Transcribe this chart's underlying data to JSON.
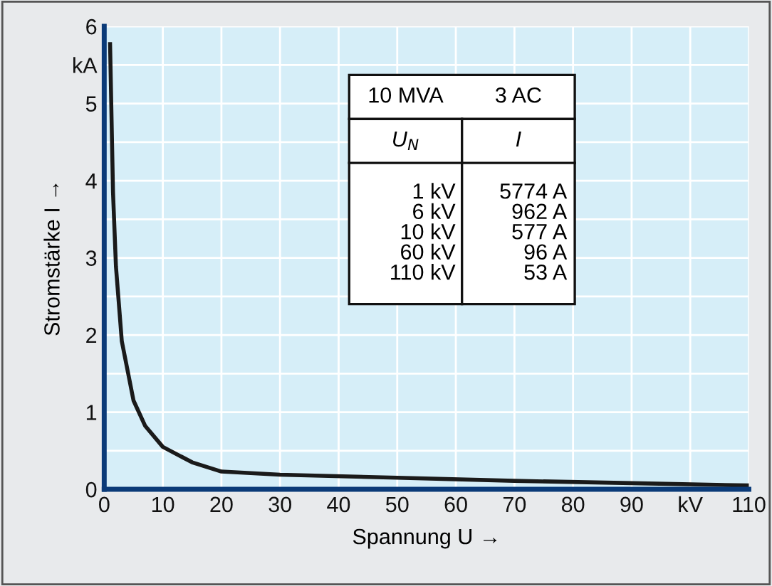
{
  "chart_data": {
    "type": "line",
    "xlabel": "Spannung U →",
    "ylabel": "Stromstärke I →",
    "x": [
      1,
      1.5,
      2,
      3,
      5,
      7,
      10,
      15,
      20,
      30,
      50,
      70,
      90,
      110
    ],
    "series": [
      {
        "color": "#1a1a1a",
        "values": [
          5.77,
          3.85,
          2.89,
          1.92,
          1.15,
          0.82,
          0.55,
          0.35,
          0.23,
          0.19,
          0.15,
          0.11,
          0.08,
          0.05
        ]
      }
    ],
    "xlim": [
      0,
      110
    ],
    "ylim": [
      0,
      6
    ],
    "xticks": [
      0,
      10,
      20,
      30,
      40,
      50,
      60,
      70,
      80,
      90,
      {
        "value": 100,
        "label": "kV"
      },
      110
    ],
    "yticks": [
      0,
      {
        "value": 0.5,
        "label": null
      },
      1,
      {
        "value": 1.5,
        "label": null
      },
      2,
      {
        "value": 2.5,
        "label": null
      },
      3,
      {
        "value": 3.5,
        "label": null
      },
      4,
      {
        "value": 4.5,
        "label": null
      },
      5,
      {
        "value": 5.5,
        "label": "kA"
      },
      6
    ],
    "grid": true,
    "marker": "none",
    "line_style": "solid",
    "annotations": [
      "10 MVA",
      "3 AC",
      "U$_{N}$",
      "I",
      "1 kV\n6 kV\n10 kV\n60 kV\n110 kV",
      "5774 A\n962 A\n577 A\n96 A\n53 A"
    ]
  }
}
